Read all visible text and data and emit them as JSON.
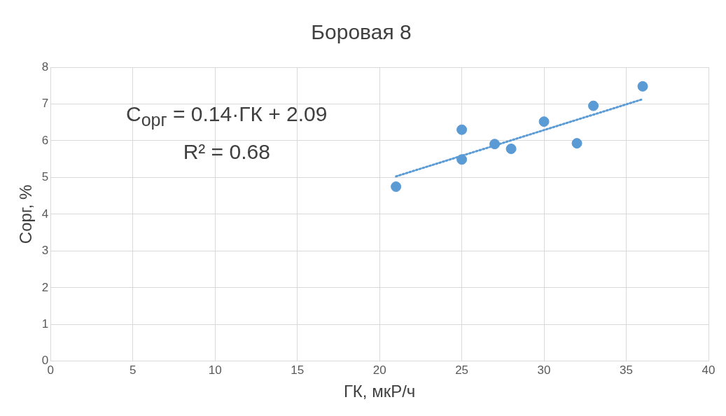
{
  "chart_data": {
    "type": "scatter",
    "title": "Боровая 8",
    "xlabel": "ГК, мкР/ч",
    "ylabel": "Сорг, %",
    "xlim": [
      0,
      40
    ],
    "xticks": [
      0,
      5,
      10,
      15,
      20,
      25,
      30,
      35,
      40
    ],
    "ylim": [
      0,
      8
    ],
    "yticks": [
      0,
      1,
      2,
      3,
      4,
      5,
      6,
      7,
      8
    ],
    "grid": true,
    "legend": false,
    "marker": "circle",
    "series": [
      {
        "color": "#5b9bd5",
        "x": [
          21,
          25,
          25,
          27,
          28,
          30,
          32,
          33,
          36
        ],
        "values": [
          4.75,
          6.3,
          5.49,
          5.91,
          5.78,
          6.52,
          5.93,
          6.95,
          7.48
        ]
      },
      {
        "type": "line",
        "color": "#5b9bd5",
        "marker": "none",
        "line_style": "dotted",
        "x": [
          21,
          36
        ],
        "values": [
          5.03,
          7.13
        ]
      }
    ],
    "annotations": [
      "C$_{орг}$ = 0.14·ГК + 2.09",
      "R² = 0.68"
    ]
  }
}
